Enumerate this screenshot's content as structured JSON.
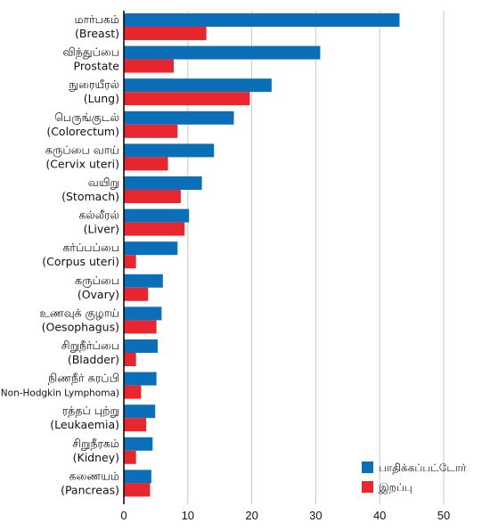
{
  "chart_data": {
    "type": "bar",
    "orientation": "horizontal",
    "categories": [
      [
        "மார்பகம்",
        "(Breast)"
      ],
      [
        "விந்துப்பை",
        "Prostate"
      ],
      [
        "நுரையீரல்",
        "(Lung)"
      ],
      [
        "பெருங்குடல்",
        "(Colorectum)"
      ],
      [
        "கருப்பை வாய்",
        "(Cervix uteri)"
      ],
      [
        "வயிறு",
        "(Stomach)"
      ],
      [
        "கல்லீரல்",
        "(Liver)"
      ],
      [
        "கர்ப்பப்பை",
        "(Corpus uteri)"
      ],
      [
        "கருப்பை",
        "(Ovary)"
      ],
      [
        "உணவுக் குழாய்",
        "(Oesophagus)"
      ],
      [
        "சிறுநீர்ப்பை",
        "(Bladder)"
      ],
      [
        "நிணநீர் சுரப்பி",
        "(Non-Hodgkin Lymphoma)"
      ],
      [
        "ரத்தப் புற்று",
        "(Leukaemia)"
      ],
      [
        "சிறுநீரகம்",
        "(Kidney)"
      ],
      [
        "கணையம்",
        "(Pancreas)"
      ]
    ],
    "series": [
      {
        "name": "பாதிக்கப்பட்டோர்",
        "color": "#0a6fb8",
        "values": [
          43.1,
          30.7,
          23.1,
          17.2,
          14.1,
          12.2,
          10.2,
          8.4,
          6.1,
          5.9,
          5.3,
          5.1,
          4.9,
          4.5,
          4.3
        ]
      },
      {
        "name": "இறப்பு",
        "color": "#e8262d",
        "values": [
          12.9,
          7.8,
          19.7,
          8.4,
          6.9,
          8.9,
          9.5,
          1.9,
          3.8,
          5.1,
          1.9,
          2.7,
          3.5,
          1.9,
          4.1
        ]
      }
    ],
    "xlim": [
      0,
      50
    ],
    "xticks": [
      0,
      10,
      20,
      30,
      40,
      50
    ],
    "grid": "vertical",
    "legend": "bottom-right"
  }
}
